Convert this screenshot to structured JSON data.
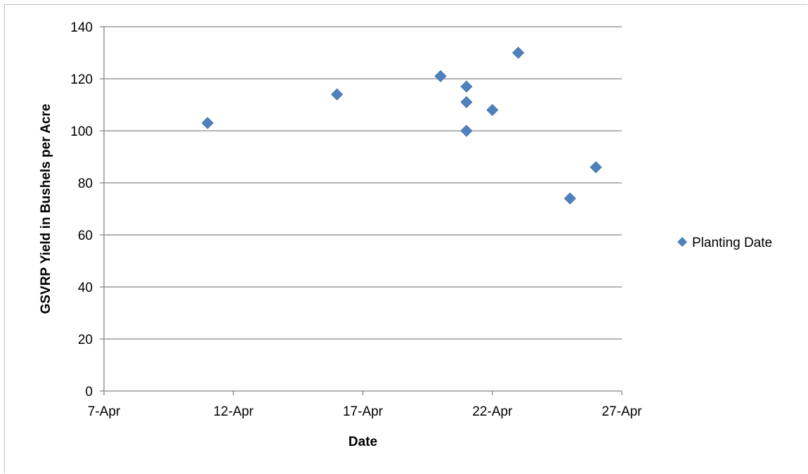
{
  "chart_data": {
    "type": "scatter",
    "title": "",
    "xlabel": "Date",
    "ylabel": "GSVRP Yield in Bushels per Acre",
    "x_ticks": [
      "7-Apr",
      "12-Apr",
      "17-Apr",
      "22-Apr",
      "27-Apr"
    ],
    "x_tick_dates": [
      "2000-04-07",
      "2000-04-12",
      "2000-04-17",
      "2000-04-22",
      "2000-04-27"
    ],
    "xlim": [
      "2000-04-07",
      "2000-04-27"
    ],
    "y_ticks": [
      0,
      20,
      40,
      60,
      80,
      100,
      120,
      140
    ],
    "ylim": [
      0,
      140
    ],
    "grid": "horizontal",
    "legend_position": "right",
    "series": [
      {
        "name": "Planting Date",
        "color": "#4f81bd",
        "marker": "diamond",
        "points": [
          {
            "x": "2000-04-11",
            "y": 103
          },
          {
            "x": "2000-04-16",
            "y": 114
          },
          {
            "x": "2000-04-20",
            "y": 121
          },
          {
            "x": "2000-04-21",
            "y": 117
          },
          {
            "x": "2000-04-21",
            "y": 111
          },
          {
            "x": "2000-04-21",
            "y": 100
          },
          {
            "x": "2000-04-22",
            "y": 108
          },
          {
            "x": "2000-04-23",
            "y": 130
          },
          {
            "x": "2000-04-25",
            "y": 74
          },
          {
            "x": "2000-04-26",
            "y": 86
          }
        ]
      }
    ]
  }
}
